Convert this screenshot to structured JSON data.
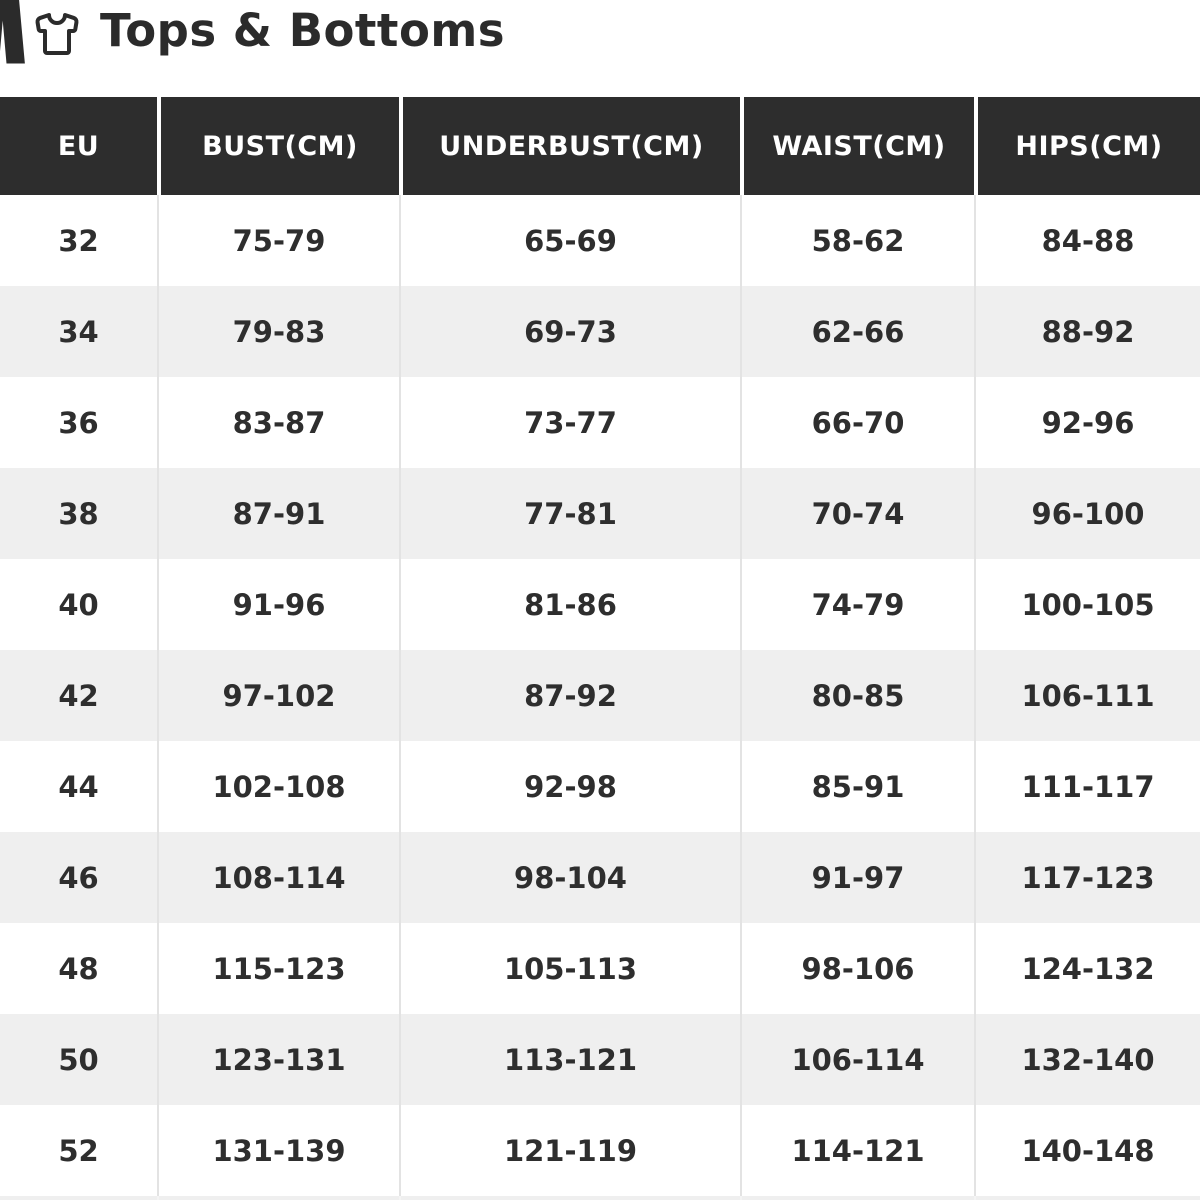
{
  "page": {
    "title": "Tops & Bottoms"
  },
  "colors": {
    "header_bg": "#2d2d2d",
    "row_alt": "#efefef",
    "row_white": "#ffffff",
    "text_dark": "#2e2e2e",
    "separator": "#e3e3e3",
    "title_text": "#2b2b2b",
    "header_text": "#ffffff"
  },
  "icons": {
    "left": "pants-icon",
    "right": "tshirt-icon"
  },
  "table": {
    "columns": [
      "EU",
      "BUST(CM)",
      "UNDERBUST(CM)",
      "WAIST(CM)",
      "HIPS(CM)"
    ],
    "rows": [
      [
        "32",
        "75-79",
        "65-69",
        "58-62",
        "84-88"
      ],
      [
        "34",
        "79-83",
        "69-73",
        "62-66",
        "88-92"
      ],
      [
        "36",
        "83-87",
        "73-77",
        "66-70",
        "92-96"
      ],
      [
        "38",
        "87-91",
        "77-81",
        "70-74",
        "96-100"
      ],
      [
        "40",
        "91-96",
        "81-86",
        "74-79",
        "100-105"
      ],
      [
        "42",
        "97-102",
        "87-92",
        "80-85",
        "106-111"
      ],
      [
        "44",
        "102-108",
        "92-98",
        "85-91",
        "111-117"
      ],
      [
        "46",
        "108-114",
        "98-104",
        "91-97",
        "117-123"
      ],
      [
        "48",
        "115-123",
        "105-113",
        "98-106",
        "124-132"
      ],
      [
        "50",
        "123-131",
        "113-121",
        "106-114",
        "132-140"
      ],
      [
        "52",
        "131-139",
        "121-119",
        "114-121",
        "140-148"
      ]
    ]
  },
  "chart_data": {
    "type": "table",
    "title": "Tops & Bottoms",
    "columns": [
      "EU",
      "BUST(CM)",
      "UNDERBUST(CM)",
      "WAIST(CM)",
      "HIPS(CM)"
    ],
    "rows": [
      [
        "32",
        "75-79",
        "65-69",
        "58-62",
        "84-88"
      ],
      [
        "34",
        "79-83",
        "69-73",
        "62-66",
        "88-92"
      ],
      [
        "36",
        "83-87",
        "73-77",
        "66-70",
        "92-96"
      ],
      [
        "38",
        "87-91",
        "77-81",
        "70-74",
        "96-100"
      ],
      [
        "40",
        "91-96",
        "81-86",
        "74-79",
        "100-105"
      ],
      [
        "42",
        "97-102",
        "87-92",
        "80-85",
        "106-111"
      ],
      [
        "44",
        "102-108",
        "92-98",
        "85-91",
        "111-117"
      ],
      [
        "46",
        "108-114",
        "98-104",
        "91-97",
        "117-123"
      ],
      [
        "48",
        "115-123",
        "105-113",
        "98-106",
        "124-132"
      ],
      [
        "50",
        "123-131",
        "113-121",
        "106-114",
        "132-140"
      ],
      [
        "52",
        "131-139",
        "121-119",
        "114-121",
        "140-148"
      ]
    ],
    "layout_hints": {
      "header_style": "dark-bar-white-text",
      "row_striping": "white/light-gray alternating",
      "grid": "vertical separators only"
    }
  }
}
